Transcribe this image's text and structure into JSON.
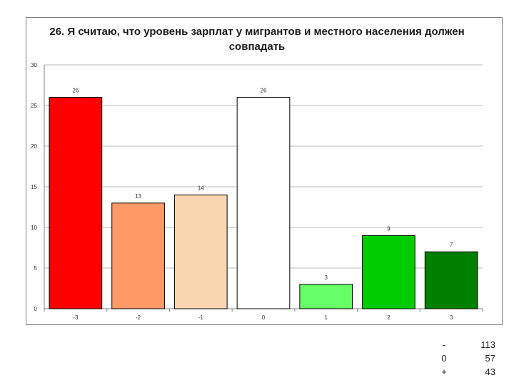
{
  "chart_data": {
    "type": "bar",
    "title": "26. Я считаю, что уровень зарплат у мигрантов и местного населения должен совпадать",
    "categories": [
      "-3",
      "-2",
      "-1",
      "0",
      "1",
      "2",
      "3"
    ],
    "values": [
      26,
      13,
      14,
      26,
      3,
      9,
      7
    ],
    "bar_colors": [
      "#ff0000",
      "#ff9966",
      "#f9d5b0",
      "#ffffff",
      "#66ff66",
      "#00cc00",
      "#008000"
    ],
    "ylim": [
      0,
      30
    ],
    "yticks": [
      0,
      5,
      10,
      15,
      20,
      25,
      30
    ],
    "grid": true,
    "legend": "none",
    "data_labels": true
  },
  "summary": {
    "rows": [
      {
        "label": "-",
        "value": "113"
      },
      {
        "label": "0",
        "value": "57"
      },
      {
        "label": "+",
        "value": "43"
      }
    ]
  }
}
